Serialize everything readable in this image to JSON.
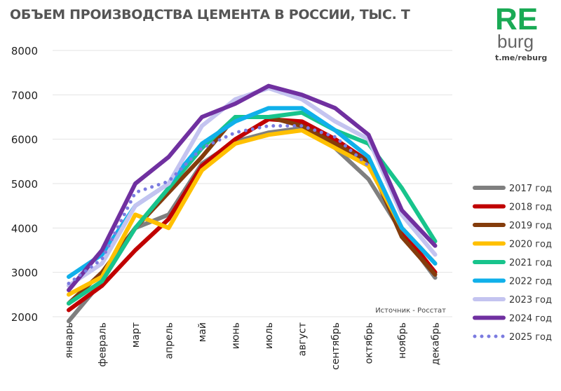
{
  "title": "ОБЪЕМ ПРОИЗВОДСТВА ЦЕМЕНТА В РОССИИ, ТЫС. Т",
  "logo": {
    "text": "REburg",
    "link": "t.me/reburg",
    "color": "#1aaa55"
  },
  "chart_data": {
    "type": "line",
    "title": "ОБЪЕМ ПРОИЗВОДСТВА ЦЕМЕНТА В РОССИИ, ТЫС. Т",
    "source": "Источник - Росстат",
    "ylim": [
      2000,
      8000
    ],
    "yticks": [
      2000,
      3000,
      4000,
      5000,
      6000,
      7000,
      8000
    ],
    "grid": true,
    "legend": "right",
    "categories": [
      "январь",
      "февраль",
      "март",
      "апрель",
      "май",
      "июнь",
      "июль",
      "август",
      "сентябрь",
      "октябрь",
      "ноябрь",
      "декабрь"
    ],
    "series": [
      {
        "name": "2017 год",
        "color": "#7f7f7f",
        "style": "solid",
        "values": [
          1900,
          2800,
          4000,
          4300,
          5450,
          5950,
          6150,
          6250,
          5800,
          5100,
          3900,
          2880
        ]
      },
      {
        "name": "2018 год",
        "color": "#c00000",
        "style": "solid",
        "values": [
          2150,
          2700,
          3500,
          4200,
          5400,
          6000,
          6450,
          6400,
          6000,
          5500,
          3950,
          3000
        ]
      },
      {
        "name": "2019 год",
        "color": "#843c0c",
        "style": "solid",
        "values": [
          2300,
          3000,
          4000,
          4800,
          5600,
          6500,
          6500,
          6300,
          5900,
          5500,
          3800,
          2950
        ]
      },
      {
        "name": "2020 год",
        "color": "#ffc000",
        "style": "solid",
        "values": [
          2500,
          2900,
          4300,
          4000,
          5300,
          5900,
          6100,
          6200,
          5800,
          5400,
          4000,
          3200
        ]
      },
      {
        "name": "2021 год",
        "color": "#18c48c",
        "style": "solid",
        "values": [
          2300,
          2800,
          4000,
          4900,
          5800,
          6500,
          6500,
          6600,
          6200,
          5900,
          4900,
          3700
        ]
      },
      {
        "name": "2022 год",
        "color": "#10b0ea",
        "style": "solid",
        "values": [
          2900,
          3400,
          4500,
          5000,
          5900,
          6400,
          6700,
          6700,
          6200,
          5600,
          4000,
          3200
        ]
      },
      {
        "name": "2023 год",
        "color": "#c4c4f0",
        "style": "solid",
        "values": [
          2700,
          3200,
          4500,
          5000,
          6300,
          6900,
          7150,
          6900,
          6400,
          6000,
          4300,
          3400
        ]
      },
      {
        "name": "2024 год",
        "color": "#7030a0",
        "style": "solid",
        "values": [
          2600,
          3500,
          5000,
          5600,
          6500,
          6800,
          7200,
          7000,
          6700,
          6100,
          4400,
          3600
        ]
      },
      {
        "name": "2025 год",
        "color": "#7b7be0",
        "style": "dotted",
        "values": [
          2750,
          3300,
          4800,
          5050,
          5800,
          6150,
          6300,
          6300,
          6050,
          5400,
          null,
          null
        ]
      }
    ]
  }
}
